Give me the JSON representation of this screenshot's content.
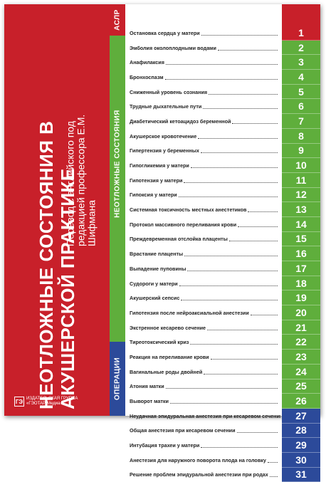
{
  "book": {
    "title": "НЕОТЛОЖНЫЕ СОСТОЯНИЯ В АКУШЕРСКОЙ ПРАКТИКЕ",
    "subtitle": "Перевод с английского под редакцией профессора Е.М. Шифмана",
    "publisher_line1": "ИЗДАТЕЛЬСКАЯ ГРУППА",
    "publisher_line2": "«ГЭОТАР-Медиа»",
    "publisher_logo": "ГЭ"
  },
  "sections": {
    "aslr": "АСЛР",
    "emergency": "НЕОТЛОЖНЫЕ СОСТОЯНИЯ",
    "operations": "ОПЕРАЦИИ"
  },
  "colors": {
    "red": "#c8202a",
    "green": "#5fae3c",
    "blue": "#2c4a9a"
  },
  "toc": [
    {
      "label": "Остановка сердца у матери",
      "num": "1",
      "section": "red"
    },
    {
      "label": "Эмболия околоплодными водами",
      "num": "2",
      "section": "green"
    },
    {
      "label": "Анафилаксия",
      "num": "3",
      "section": "green"
    },
    {
      "label": "Бронхоспазм",
      "num": "4",
      "section": "green"
    },
    {
      "label": "Сниженный уровень сознания",
      "num": "5",
      "section": "green"
    },
    {
      "label": "Трудные дыхательные пути",
      "num": "6",
      "section": "green"
    },
    {
      "label": "Диабетический кетоацидоз беременной",
      "num": "7",
      "section": "green"
    },
    {
      "label": "Акушерское кровотечение",
      "num": "8",
      "section": "green"
    },
    {
      "label": "Гипертензия у беременных",
      "num": "9",
      "section": "green"
    },
    {
      "label": "Гипогликемия у матери",
      "num": "10",
      "section": "green"
    },
    {
      "label": "Гипотензия у матери",
      "num": "11",
      "section": "green"
    },
    {
      "label": "Гипоксия у матери",
      "num": "12",
      "section": "green"
    },
    {
      "label": "Системная токсичность местных анестетиков",
      "num": "13",
      "section": "green"
    },
    {
      "label": "Протокол массивного переливания крови",
      "num": "14",
      "section": "green"
    },
    {
      "label": "Преждевременная отслойка плаценты",
      "num": "15",
      "section": "green"
    },
    {
      "label": "Врастание плаценты",
      "num": "16",
      "section": "green"
    },
    {
      "label": "Выпадение пуповины",
      "num": "17",
      "section": "green"
    },
    {
      "label": "Судороги у матери",
      "num": "18",
      "section": "green"
    },
    {
      "label": "Акушерский сепсис",
      "num": "19",
      "section": "green"
    },
    {
      "label": "Гипотензия после нейроаксиальной анестезии",
      "num": "20",
      "section": "green"
    },
    {
      "label": "Экстренное кесарево сечение",
      "num": "21",
      "section": "green"
    },
    {
      "label": "Тиреотоксический криз",
      "num": "22",
      "section": "green"
    },
    {
      "label": "Реакция на переливание крови",
      "num": "23",
      "section": "green"
    },
    {
      "label": "Вагинальные роды двойней",
      "num": "24",
      "section": "green"
    },
    {
      "label": "Атония матки",
      "num": "25",
      "section": "green"
    },
    {
      "label": "Выворот матки",
      "num": "26",
      "section": "green"
    },
    {
      "label": "Неудачная эпидуральная анестезия при кесаревом сечении",
      "num": "27",
      "section": "blue"
    },
    {
      "label": "Общая анестезия при кесаревом сечении",
      "num": "28",
      "section": "blue"
    },
    {
      "label": "Интубация трахеи у матери",
      "num": "29",
      "section": "blue"
    },
    {
      "label": "Анестезия для наружного поворота плода на головку",
      "num": "30",
      "section": "blue"
    },
    {
      "label": "Решение проблем эпидуральной анестезии при родах",
      "num": "31",
      "section": "blue"
    }
  ]
}
